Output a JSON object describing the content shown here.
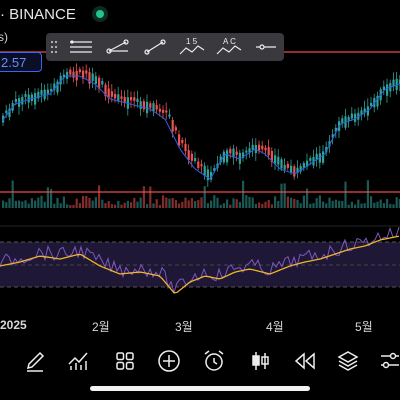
{
  "header": {
    "title": "· BINANCE",
    "left_fragment": "s)",
    "price_tag": "2.57",
    "live_indicator_color": "#22c58a"
  },
  "toolbar": {
    "tools": [
      {
        "icon": "horizontal-lines-icon"
      },
      {
        "icon": "trend-lines-icon"
      },
      {
        "icon": "line-segment-icon"
      },
      {
        "icon": "abc-pattern-icon",
        "label": "1 5"
      },
      {
        "icon": "xabcd-pattern-icon",
        "label": "A C"
      },
      {
        "icon": "horizontal-ray-icon"
      }
    ]
  },
  "x_axis": {
    "labels": [
      "2025",
      "2월",
      "3월",
      "4월",
      "5월"
    ]
  },
  "colors": {
    "up": "#2fa39a",
    "down": "#ee5151",
    "ema": "#2a62e6",
    "rsi": "#7e57c2",
    "rsi_ma": "#f0b429",
    "alert_line": "#e84b4b",
    "rsi_band": "#1e1736"
  },
  "bottom_toolbar": {
    "icons": [
      "draw-brush-icon",
      "indicators-icon",
      "apps-grid-icon",
      "add-icon",
      "alarm-clock-icon",
      "candle-type-icon",
      "replay-icon",
      "layers-icon",
      "settings-sliders-icon"
    ]
  }
}
